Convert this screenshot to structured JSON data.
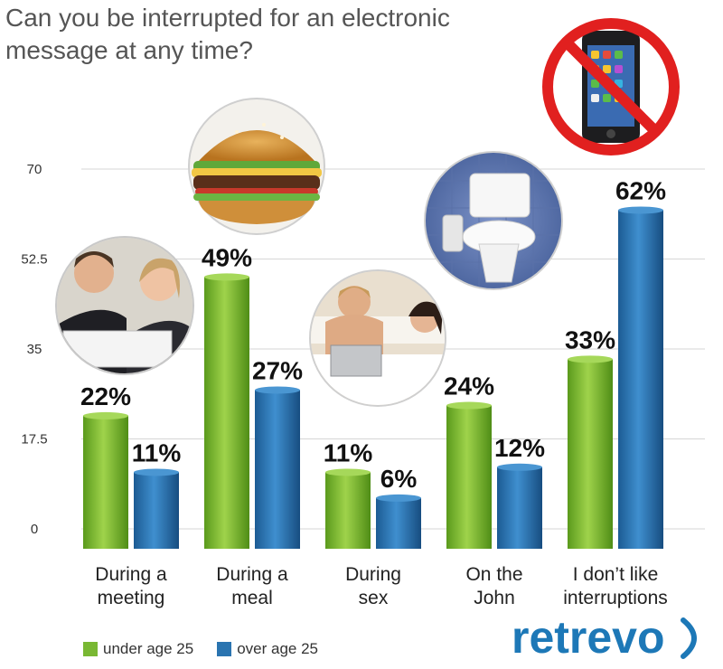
{
  "chart_data": {
    "type": "bar",
    "title": "Can you be interrupted for an electronic message at any time?",
    "categories": [
      [
        "During a",
        "meeting"
      ],
      [
        "During a",
        "meal"
      ],
      [
        "During",
        "sex"
      ],
      [
        "On the",
        "John"
      ],
      [
        "I don’t like",
        "interruptions"
      ]
    ],
    "series": [
      {
        "name": "under age 25",
        "color": "#79b833",
        "values": [
          22,
          49,
          11,
          24,
          33
        ]
      },
      {
        "name": "over age 25",
        "color": "#2a74b0",
        "values": [
          11,
          27,
          6,
          12,
          62
        ]
      }
    ],
    "data_labels": [
      [
        "22%",
        "49%",
        "11%",
        "24%",
        "33%"
      ],
      [
        "11%",
        "27%",
        "6%",
        "12%",
        "62%"
      ]
    ],
    "y_ticks": [
      "0",
      "17.5",
      "35",
      "52.5",
      "70"
    ],
    "y_tick_values": [
      0,
      17.5,
      35,
      52.5,
      70
    ],
    "ylim": [
      0,
      70
    ],
    "grid": true,
    "legend_position": "bottom-left",
    "xlabel": "",
    "ylabel": ""
  },
  "brand": {
    "name": "retrevo"
  },
  "icons": {
    "meeting": "meeting-photo-icon",
    "meal": "burger-icon",
    "sex": "couple-bed-icon",
    "john": "toilet-icon",
    "no_phone": "no-phone-icon"
  }
}
